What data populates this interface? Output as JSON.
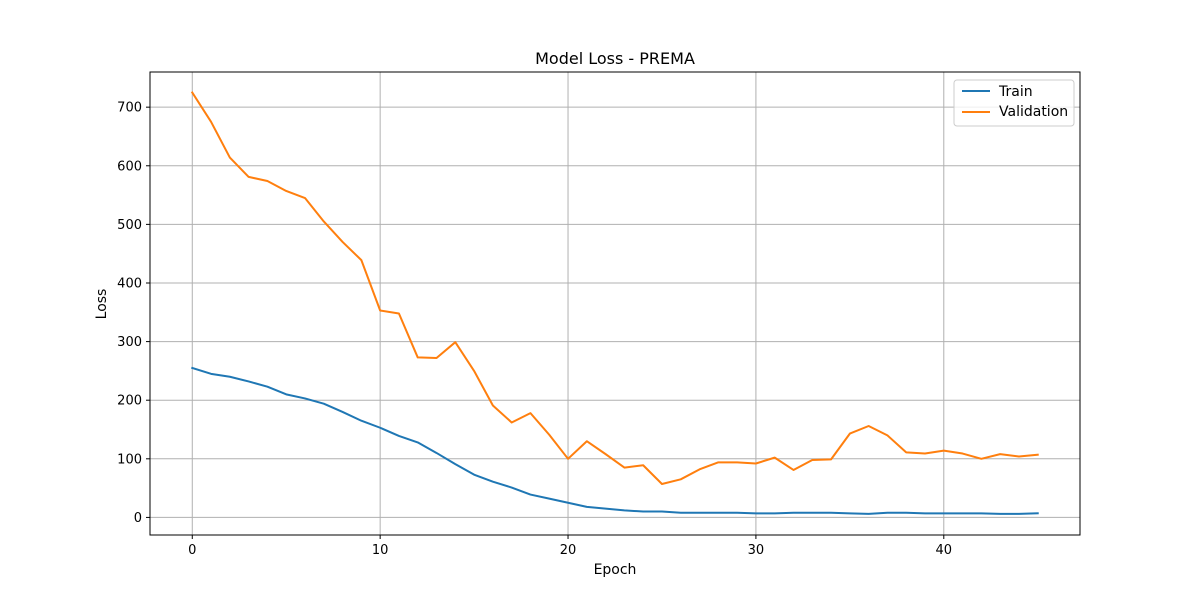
{
  "chart_data": {
    "type": "line",
    "title": "Model Loss - PREMA",
    "xlabel": "Epoch",
    "ylabel": "Loss",
    "xlim": [
      -2.25,
      47.25
    ],
    "ylim": [
      -30,
      760
    ],
    "xticks": [
      0,
      10,
      20,
      30,
      40
    ],
    "yticks": [
      0,
      100,
      200,
      300,
      400,
      500,
      600,
      700
    ],
    "grid": true,
    "legend": "top-right",
    "x": [
      0,
      1,
      2,
      3,
      4,
      5,
      6,
      7,
      8,
      9,
      10,
      11,
      12,
      13,
      14,
      15,
      16,
      17,
      18,
      19,
      20,
      21,
      22,
      23,
      24,
      25,
      26,
      27,
      28,
      29,
      30,
      31,
      32,
      33,
      34,
      35,
      36,
      37,
      38,
      39,
      40,
      41,
      42,
      43,
      44,
      45
    ],
    "series": [
      {
        "name": "Train",
        "color": "#1f77b4",
        "values": [
          255,
          245,
          240,
          232,
          223,
          210,
          203,
          194,
          180,
          165,
          153,
          139,
          128,
          110,
          91,
          73,
          61,
          51,
          39,
          32,
          25,
          18,
          15,
          12,
          10,
          10,
          8,
          8,
          8,
          8,
          7,
          7,
          8,
          8,
          8,
          7,
          6,
          8,
          8,
          7,
          7,
          7,
          7,
          6,
          6,
          7
        ]
      },
      {
        "name": "Validation",
        "color": "#ff7f0e",
        "values": [
          725,
          675,
          614,
          581,
          574,
          557,
          545,
          505,
          470,
          439,
          353,
          348,
          273,
          272,
          299,
          250,
          191,
          162,
          178,
          141,
          100,
          130,
          108,
          85,
          89,
          57,
          65,
          82,
          94,
          94,
          92,
          102,
          81,
          98,
          99,
          143,
          156,
          140,
          111,
          109,
          114,
          109,
          100,
          108,
          104,
          107
        ]
      }
    ]
  }
}
